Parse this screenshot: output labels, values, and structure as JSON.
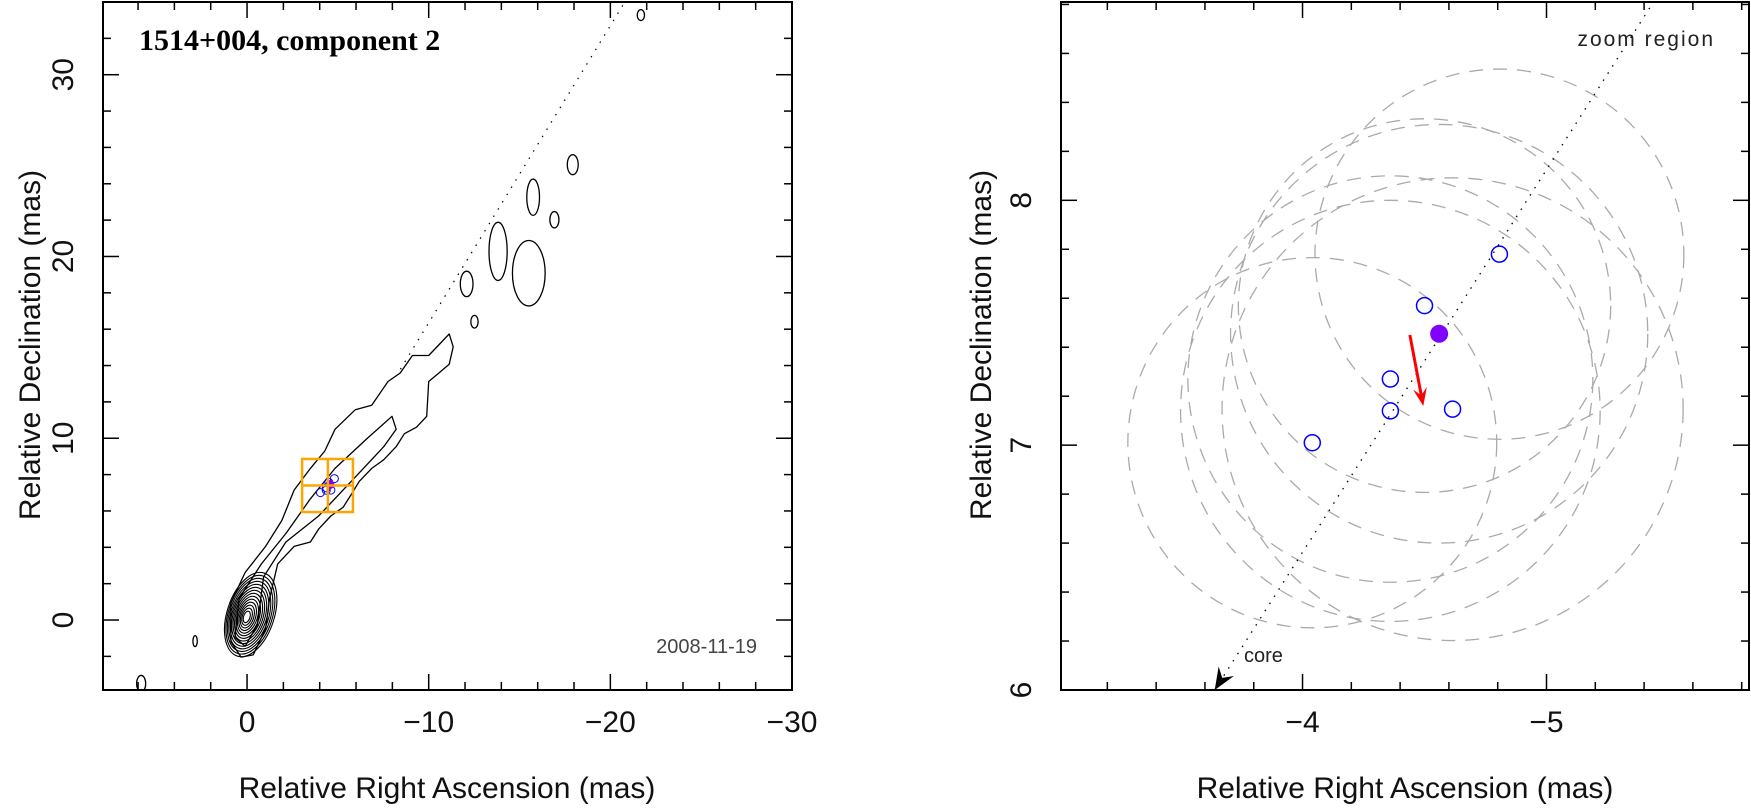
{
  "chart_data": [
    {
      "type": "contour",
      "title": "1514+004, component 2",
      "date_label": "2008-11-19",
      "xlabel": "Relative Right Ascension (mas)",
      "ylabel": "Relative Declination (mas)",
      "xlim": [
        7.93,
        -30
      ],
      "ylim": [
        -3.85,
        34.0
      ],
      "xticks": [
        0,
        -10,
        -20,
        -30
      ],
      "xtick_labels": [
        "0",
        "−10",
        "−20",
        "−30"
      ],
      "yticks": [
        0,
        10,
        20,
        30
      ],
      "ytick_labels": [
        "0",
        "10",
        "20",
        "30"
      ],
      "minor_step": 2,
      "core": {
        "ra": -0.2,
        "dec": 0.3,
        "rx": 1.3,
        "ry": 2.4,
        "levels": 14
      },
      "contours": [
        {
          "name": "outer",
          "points": [
            [
              0.89,
              0.95
            ],
            [
              0.1,
              2.62
            ],
            [
              -1.02,
              4.05
            ],
            [
              -1.92,
              5.48
            ],
            [
              -2.59,
              7.15
            ],
            [
              -3.49,
              8.34
            ],
            [
              -4.28,
              9.3
            ],
            [
              -4.84,
              10.49
            ],
            [
              -5.96,
              11.57
            ],
            [
              -6.86,
              11.81
            ],
            [
              -7.76,
              13.12
            ],
            [
              -8.43,
              13.59
            ],
            [
              -9.1,
              14.55
            ],
            [
              -10.0,
              14.55
            ],
            [
              -10.68,
              15.27
            ],
            [
              -11.13,
              15.74
            ],
            [
              -11.35,
              15.03
            ],
            [
              -11.13,
              14.07
            ],
            [
              -10.56,
              13.59
            ],
            [
              -10.0,
              13.12
            ],
            [
              -9.89,
              11.21
            ],
            [
              -9.33,
              10.61
            ],
            [
              -8.66,
              10.25
            ],
            [
              -8.21,
              9.54
            ],
            [
              -7.53,
              8.82
            ],
            [
              -6.86,
              8.34
            ],
            [
              -6.18,
              7.63
            ],
            [
              -5.74,
              6.91
            ],
            [
              -5.29,
              6.2
            ],
            [
              -4.61,
              5.72
            ],
            [
              -3.94,
              5.0
            ],
            [
              -3.49,
              4.29
            ],
            [
              -2.59,
              4.05
            ],
            [
              -1.69,
              3.09
            ],
            [
              -1.24,
              1.19
            ],
            [
              -1.02,
              -0.49
            ],
            [
              -0.34,
              -1.92
            ],
            [
              0.33,
              -2.04
            ],
            [
              0.89,
              -1.2
            ]
          ]
        },
        {
          "name": "inner",
          "points": [
            [
              0.44,
              1.19
            ],
            [
              -0.79,
              3.09
            ],
            [
              -2.14,
              4.76
            ],
            [
              -3.49,
              6.67
            ],
            [
              -4.84,
              8.34
            ],
            [
              -6.63,
              10.01
            ],
            [
              -7.98,
              11.21
            ],
            [
              -8.21,
              10.49
            ],
            [
              -7.53,
              9.54
            ],
            [
              -5.74,
              7.63
            ],
            [
              -3.94,
              5.72
            ],
            [
              -2.14,
              4.29
            ],
            [
              -0.91,
              2.38
            ],
            [
              -0.57,
              -0.25
            ],
            [
              0.1,
              -1.44
            ],
            [
              0.67,
              -0.96
            ]
          ]
        }
      ],
      "islands": [
        {
          "ra": -17.93,
          "dec": 25.05,
          "rx": 0.3,
          "ry": 0.55
        },
        {
          "ra": -15.75,
          "dec": 23.26,
          "rx": 0.35,
          "ry": 1.0
        },
        {
          "ra": -16.92,
          "dec": 22.02,
          "rx": 0.25,
          "ry": 0.45
        },
        {
          "ra": -13.82,
          "dec": 20.28,
          "rx": 0.5,
          "ry": 1.6
        },
        {
          "ra": -15.51,
          "dec": 19.08,
          "rx": 0.9,
          "ry": 1.8
        },
        {
          "ra": -12.09,
          "dec": 18.49,
          "rx": 0.35,
          "ry": 0.7
        },
        {
          "ra": -12.52,
          "dec": 16.41,
          "rx": 0.2,
          "ry": 0.35
        },
        {
          "ra": -21.68,
          "dec": 33.28,
          "rx": 0.2,
          "ry": 0.3
        },
        {
          "ra": 2.86,
          "dec": -1.16,
          "rx": 0.12,
          "ry": 0.3
        },
        {
          "ra": 5.83,
          "dec": -3.5,
          "rx": 0.25,
          "ry": 0.45
        }
      ],
      "jet_axis": {
        "slope": -1.635,
        "dec_from": 13.8,
        "dec_to": 34.0
      },
      "zoom_box": {
        "ra": [
          -3.03,
          -5.83
        ],
        "dec": [
          5.94,
          8.86
        ],
        "center": [
          -4.45,
          7.4
        ],
        "color": "#ffa500"
      }
    },
    {
      "type": "scatter",
      "xlabel": "Relative Right Ascension (mas)",
      "ylabel": "Relative Declination (mas)",
      "xlim": [
        -3.01,
        -5.83
      ],
      "ylim": [
        6.0,
        8.81
      ],
      "xticks": [
        -4,
        -5
      ],
      "xtick_labels": [
        "−4",
        "−5"
      ],
      "yticks": [
        6,
        7,
        8
      ],
      "ytick_labels": [
        "6",
        "7",
        "8"
      ],
      "minor_step": 0.2,
      "annotation_zoom": "zoom region",
      "annotation_core": "core",
      "jet_axis": {
        "slope": -1.635,
        "dec_from": 6.0,
        "dec_to": 8.81
      },
      "core_arrow_tip": [
        -3.64,
        6.0
      ],
      "positions": [
        {
          "ra": -4.807,
          "dec": 7.78,
          "r": 0.756
        },
        {
          "ra": -4.5,
          "dec": 7.57,
          "r": 0.763
        },
        {
          "ra": -4.36,
          "dec": 7.27,
          "r": 0.83
        },
        {
          "ra": -4.36,
          "dec": 7.14,
          "r": 0.86
        },
        {
          "ra": -4.615,
          "dec": 7.147,
          "r": 0.945
        },
        {
          "ra": -4.04,
          "dec": 7.01,
          "r": 0.756
        }
      ],
      "mean_position": {
        "ra": -4.56,
        "dec": 7.455,
        "r": 0.855
      },
      "motion_vector": {
        "from": [
          -4.44,
          7.45
        ],
        "to": [
          -4.495,
          7.16
        ]
      },
      "colors": {
        "points": "#0000ff",
        "mean": "#8000ff",
        "vector": "#ff0000",
        "circles": "#aaaaaa"
      }
    }
  ]
}
